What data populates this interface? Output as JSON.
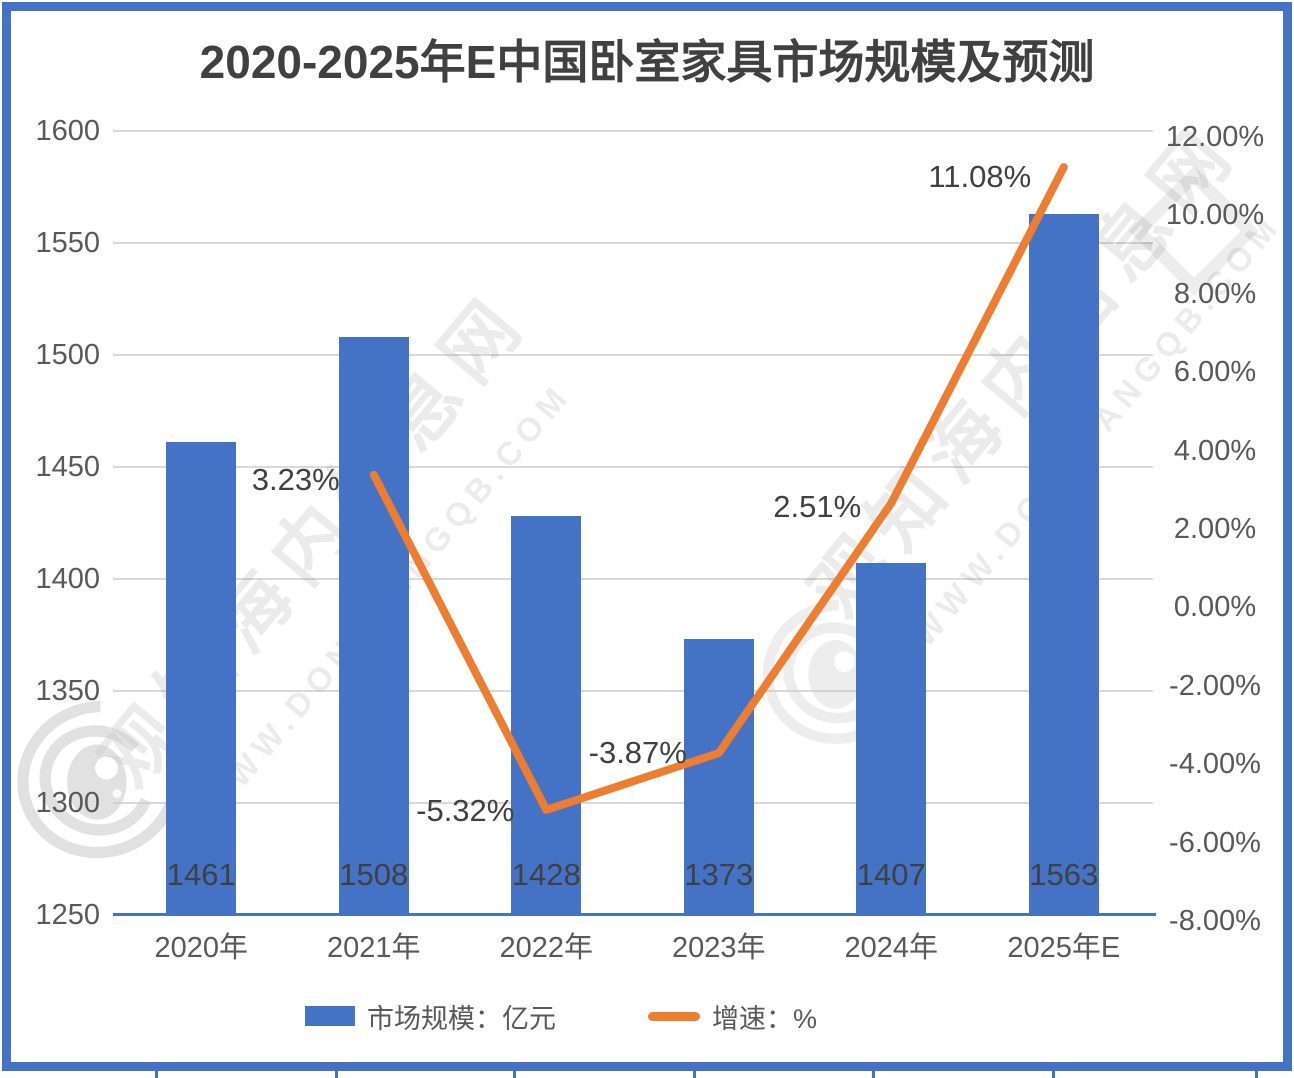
{
  "title": "2020-2025年E中国卧室家具市场规模及预测",
  "watermark": {
    "cn": "观知海内信息网",
    "url": "WWW.DONGFANGQB.COM"
  },
  "colors": {
    "bar": "#4472C4",
    "line": "#ED7D31",
    "frame": "#4472C4",
    "grid": "#D9D9D9",
    "title_text": "#404040",
    "axis_text": "#595959",
    "data_label_text": "#404040"
  },
  "chart_data": {
    "type": "bar-line-combo",
    "title": "2020-2025年E中国卧室家具市场规模及预测",
    "categories": [
      "2020年",
      "2021年",
      "2022年",
      "2023年",
      "2024年",
      "2025年E"
    ],
    "series": [
      {
        "name": "市场规模：亿元",
        "type": "bar",
        "axis": "left",
        "values": [
          1461,
          1508,
          1428,
          1373,
          1407,
          1563
        ]
      },
      {
        "name": "增速：%",
        "type": "line",
        "axis": "right",
        "values": [
          null,
          3.23,
          -5.32,
          -3.87,
          2.51,
          11.08
        ],
        "point_labels": [
          "",
          "3.23%",
          "-5.32%",
          "-3.87%",
          "2.51%",
          "11.08%"
        ]
      }
    ],
    "left_axis": {
      "min": 1250,
      "max": 1600,
      "step": 50,
      "ticks": [
        1600,
        1550,
        1500,
        1450,
        1400,
        1350,
        1300,
        1250
      ]
    },
    "right_axis": {
      "min": -8,
      "max": 12,
      "step": 2,
      "ticks": [
        "12.00%",
        "10.00%",
        "8.00%",
        "6.00%",
        "4.00%",
        "2.00%",
        "0.00%",
        "-2.00%",
        "-4.00%",
        "-6.00%",
        "-8.00%"
      ]
    },
    "grid": true,
    "legend_position": "bottom",
    "legend": [
      {
        "label": "市场规模：亿元",
        "marker": "bar"
      },
      {
        "label": "增速：%",
        "marker": "line"
      }
    ]
  }
}
